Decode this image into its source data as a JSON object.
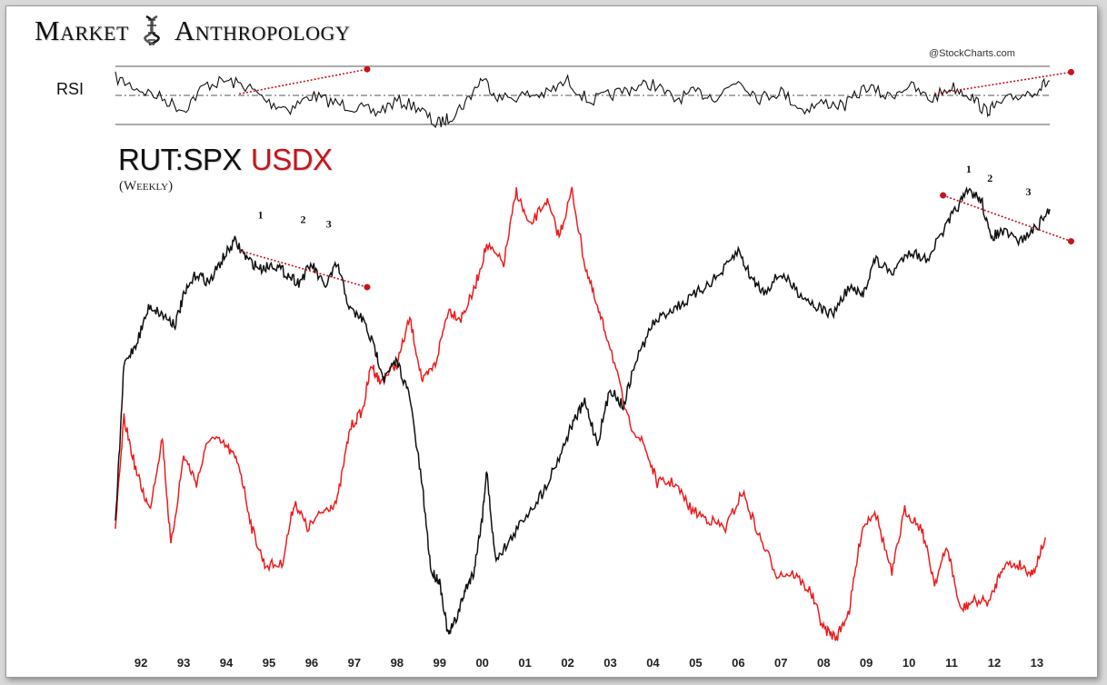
{
  "brand": {
    "word1": "Market",
    "word2": "Anthropology",
    "logo_icon": "dna-helix-icon"
  },
  "rsi": {
    "label": "RSI"
  },
  "credit": "@StockCharts.com",
  "title": {
    "ratio": "RUT:SPX",
    "dollar": "USDX"
  },
  "subtitle": "(Weekly)",
  "colors": {
    "ratio": "#111111",
    "usdx": "#ee1c1c",
    "trendline": "#c4161c"
  },
  "chart_data": [
    {
      "type": "line",
      "title": "RSI",
      "x": [
        1991.4,
        1991.9,
        1992.5,
        1993.0,
        1993.5,
        1994.0,
        1994.5,
        1995.0,
        1995.5,
        1996.0,
        1996.5,
        1997.0,
        1997.5,
        1998.0,
        1998.5,
        1998.9,
        1999.2,
        1999.6,
        2000.0,
        2000.4,
        2001.0,
        2001.5,
        2002.0,
        2002.5,
        2003.0,
        2003.5,
        2004.0,
        2004.5,
        2005.0,
        2005.5,
        2006.0,
        2006.5,
        2007.0,
        2007.5,
        2008.0,
        2008.5,
        2009.0,
        2009.5,
        2010.0,
        2010.5,
        2011.0,
        2011.4,
        2011.8,
        2012.0,
        2012.5,
        2013.0,
        2013.3
      ],
      "values": [
        62,
        55,
        48,
        40,
        57,
        60,
        56,
        45,
        41,
        50,
        45,
        42,
        38,
        46,
        42,
        30,
        34,
        45,
        62,
        48,
        50,
        51,
        60,
        46,
        50,
        55,
        58,
        47,
        52,
        49,
        61,
        48,
        53,
        40,
        45,
        43,
        56,
        49,
        57,
        47,
        56,
        51,
        39,
        42,
        49,
        54,
        60
      ],
      "reference_lines": [
        70,
        50,
        30
      ],
      "trendlines": [
        [
          [
            1994.3,
            51
          ],
          [
            1997.3,
            68
          ]
        ],
        [
          [
            2010.6,
            51
          ],
          [
            2013.8,
            66
          ]
        ]
      ]
    },
    {
      "type": "line",
      "series": [
        {
          "name": "RUT:SPX",
          "x": [
            1991.4,
            1991.6,
            1991.9,
            1992.2,
            1992.5,
            1992.8,
            1993.0,
            1993.3,
            1993.6,
            1993.9,
            1994.2,
            1994.5,
            1994.8,
            1995.1,
            1995.4,
            1995.7,
            1996.0,
            1996.3,
            1996.6,
            1996.9,
            1997.2,
            1997.5,
            1997.7,
            1998.0,
            1998.3,
            1998.6,
            1998.8,
            1999.0,
            1999.2,
            1999.4,
            1999.6,
            1999.8,
            2000.0,
            2000.1,
            2000.3,
            2000.6,
            2001.0,
            2001.4,
            2001.8,
            2002.1,
            2002.4,
            2002.7,
            2003.0,
            2003.3,
            2003.6,
            2004.0,
            2004.4,
            2004.8,
            2005.2,
            2005.6,
            2006.0,
            2006.3,
            2006.6,
            2007.0,
            2007.4,
            2007.8,
            2008.2,
            2008.6,
            2008.9,
            2009.2,
            2009.6,
            2010.0,
            2010.4,
            2010.8,
            2011.1,
            2011.4,
            2011.7,
            2011.9,
            2012.2,
            2012.6,
            2013.0,
            2013.3
          ],
          "values": [
            0.4,
            0.75,
            0.8,
            0.88,
            0.86,
            0.84,
            0.9,
            0.95,
            0.93,
            0.98,
            1.02,
            0.98,
            0.96,
            0.97,
            0.95,
            0.93,
            0.97,
            0.92,
            0.97,
            0.87,
            0.85,
            0.78,
            0.72,
            0.76,
            0.68,
            0.48,
            0.3,
            0.28,
            0.16,
            0.2,
            0.26,
            0.3,
            0.42,
            0.52,
            0.33,
            0.36,
            0.42,
            0.47,
            0.55,
            0.62,
            0.67,
            0.58,
            0.7,
            0.66,
            0.76,
            0.84,
            0.87,
            0.89,
            0.92,
            0.95,
            1.0,
            0.94,
            0.91,
            0.95,
            0.91,
            0.88,
            0.86,
            0.92,
            0.9,
            0.98,
            0.95,
            1.0,
            0.98,
            1.04,
            1.09,
            1.13,
            1.11,
            1.03,
            1.04,
            1.02,
            1.05,
            1.09
          ],
          "annotations": [
            "1",
            "2",
            "3"
          ],
          "trendline": [
            [
              1994.3,
              1.0
            ],
            [
              1997.3,
              0.92
            ]
          ]
        },
        {
          "name": "USDX",
          "x": [
            1991.4,
            1991.6,
            1991.9,
            1992.2,
            1992.5,
            1992.7,
            1993.0,
            1993.3,
            1993.6,
            1994.0,
            1994.3,
            1994.6,
            1994.9,
            1995.3,
            1995.6,
            1995.9,
            1996.3,
            1996.6,
            1996.9,
            1997.2,
            1997.4,
            1997.6,
            1998.0,
            1998.3,
            1998.6,
            1998.9,
            1999.2,
            1999.5,
            1999.8,
            2000.1,
            2000.5,
            2000.8,
            2001.1,
            2001.5,
            2001.8,
            2002.1,
            2002.4,
            2002.7,
            2003.0,
            2003.4,
            2003.8,
            2004.1,
            2004.5,
            2004.9,
            2005.3,
            2005.7,
            2006.1,
            2006.5,
            2006.9,
            2007.3,
            2007.7,
            2008.0,
            2008.3,
            2008.6,
            2008.9,
            2009.2,
            2009.6,
            2009.9,
            2010.3,
            2010.6,
            2010.9,
            2011.2,
            2011.5,
            2011.9,
            2012.2,
            2012.6,
            2012.9,
            2013.2
          ],
          "values": [
            84,
            96,
            90,
            86,
            94,
            82,
            92,
            89,
            94,
            93,
            91,
            84,
            80,
            80,
            87,
            84,
            86,
            87,
            95,
            97,
            102,
            100,
            102,
            107,
            100,
            102,
            108,
            107,
            110,
            115,
            113,
            121,
            117,
            120,
            116,
            121,
            113,
            108,
            104,
            96,
            93,
            89,
            89,
            86,
            85,
            84,
            88,
            83,
            79,
            79,
            77,
            73,
            72,
            75,
            84,
            86,
            79,
            86,
            84,
            78,
            82,
            75,
            76,
            76,
            80,
            80,
            79,
            83
          ]
        }
      ]
    }
  ],
  "x_axis": {
    "tick_labels": [
      "92",
      "93",
      "94",
      "95",
      "96",
      "97",
      "98",
      "99",
      "00",
      "01",
      "02",
      "03",
      "04",
      "05",
      "06",
      "07",
      "08",
      "09",
      "10",
      "11",
      "12",
      "13"
    ]
  }
}
